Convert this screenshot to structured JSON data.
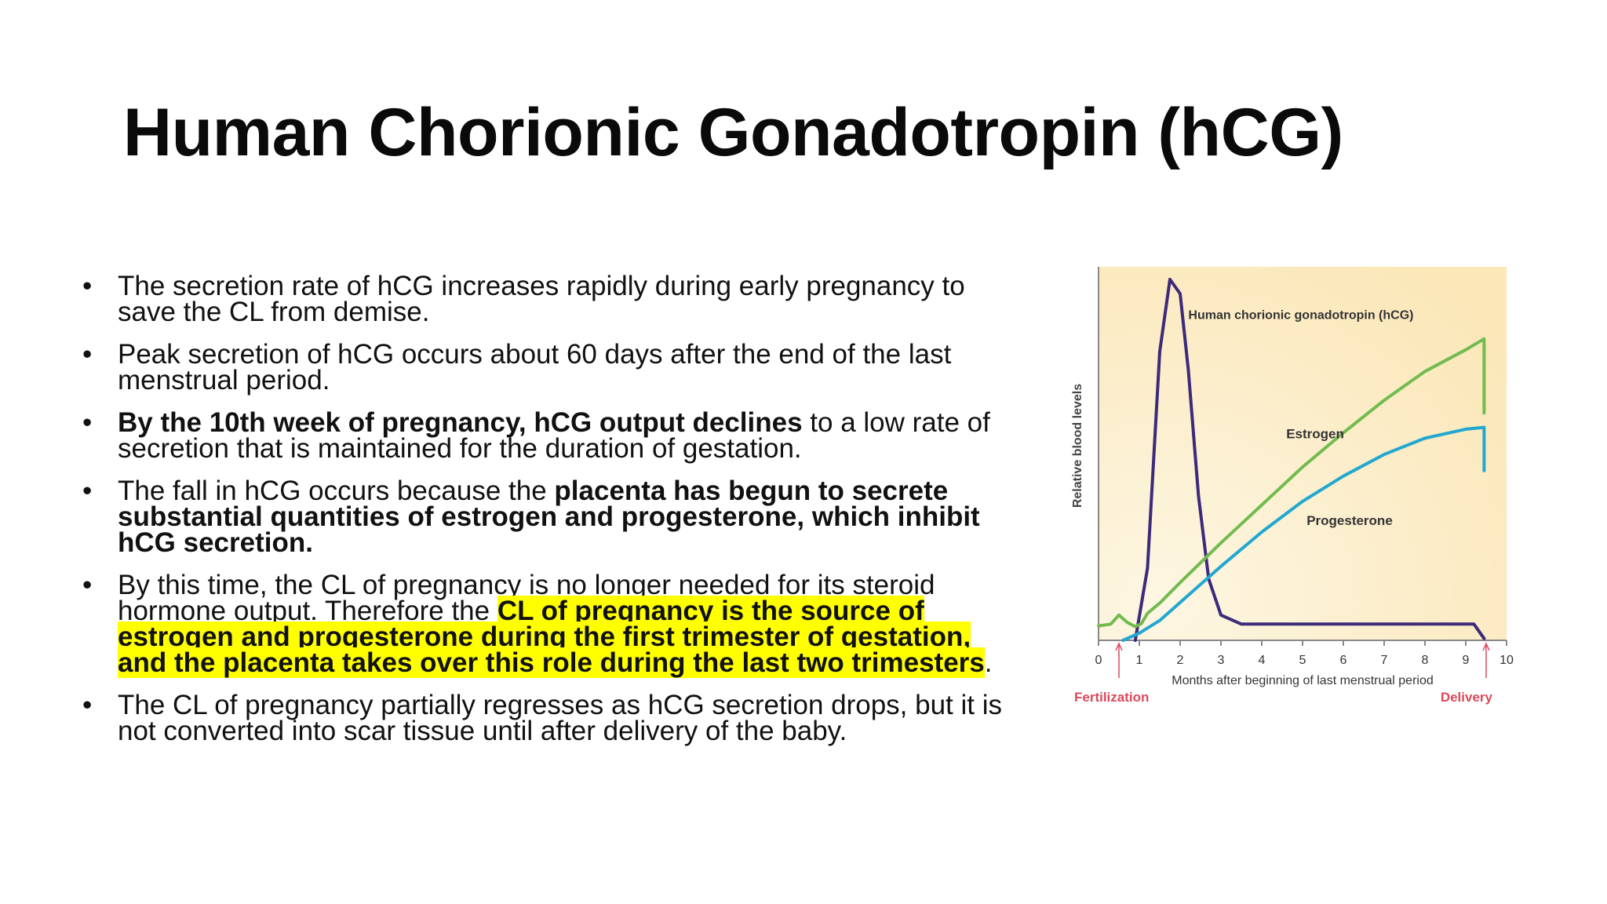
{
  "slide": {
    "title": "Human Chorionic Gonadotropin (hCG)",
    "bullet_symbol": "•",
    "bullets": [
      {
        "segments": [
          {
            "text": "The secretion rate of hCG increases rapidly during early pregnancy to save the CL from demise.",
            "style": "normal"
          }
        ]
      },
      {
        "segments": [
          {
            "text": "Peak secretion of hCG occurs about 60 days after the end of the last menstrual period.",
            "style": "normal"
          }
        ]
      },
      {
        "segments": [
          {
            "text": "By the 10th week of pregnancy, hCG output declines",
            "style": "bold"
          },
          {
            "text": " to a low rate of secretion that is maintained for the duration of gestation.",
            "style": "normal"
          }
        ]
      },
      {
        "segments": [
          {
            "text": "The fall in hCG occurs because the ",
            "style": "normal"
          },
          {
            "text": "placenta has begun to secrete substantial quantities of estrogen and progesterone, which inhibit hCG secretion.",
            "style": "bold"
          }
        ]
      },
      {
        "segments": [
          {
            "text": "By this time, the CL of pregnancy is no longer needed for its steroid hormone output. Therefore the ",
            "style": "normal"
          },
          {
            "text": "CL of pregnancy is the source of estrogen and progesterone during the first trimester of gestation, and the placenta takes over this role during the last two trimesters",
            "style": "highlight"
          },
          {
            "text": ".",
            "style": "normal"
          }
        ]
      },
      {
        "segments": [
          {
            "text": "The CL of pregnancy partially regresses as hCG secretion drops, but it is not converted into scar tissue until after delivery of the baby.",
            "style": "normal"
          }
        ]
      }
    ]
  },
  "colors": {
    "highlight": "#ffff00",
    "chart_background": "#fbe7b8",
    "hcg": "#3c2a7a",
    "estrogen": "#72bb4f",
    "progesterone": "#21a7d0",
    "marker": "#d94a5c",
    "axis": "#888888"
  },
  "chart_data": {
    "type": "line",
    "ylabel": "Relative blood levels",
    "xlabel": "Months after beginning of last menstrual period",
    "xlim": [
      0,
      10
    ],
    "ylim": [
      0,
      100
    ],
    "x_ticks": [
      "0",
      "1",
      "2",
      "3",
      "4",
      "5",
      "6",
      "7",
      "8",
      "9",
      "10"
    ],
    "grid": false,
    "series": [
      {
        "name": "Human chorionic gonadotropin (hCG)",
        "color": "#3c2a7a",
        "points": [
          [
            0.9,
            0
          ],
          [
            1.2,
            20
          ],
          [
            1.5,
            80
          ],
          [
            1.75,
            100
          ],
          [
            2.0,
            96
          ],
          [
            2.2,
            75
          ],
          [
            2.45,
            40
          ],
          [
            2.7,
            17
          ],
          [
            3.0,
            7
          ],
          [
            3.5,
            4.5
          ],
          [
            5,
            4.5
          ],
          [
            7,
            4.5
          ],
          [
            9.2,
            4.5
          ],
          [
            9.45,
            0.5
          ]
        ]
      },
      {
        "name": "Estrogen",
        "color": "#72bb4f",
        "points": [
          [
            0,
            4
          ],
          [
            0.3,
            4.5
          ],
          [
            0.5,
            7
          ],
          [
            0.7,
            5
          ],
          [
            0.9,
            3.8
          ],
          [
            1.05,
            4.6
          ],
          [
            1.2,
            7.5
          ],
          [
            1.5,
            10.3
          ],
          [
            2,
            16
          ],
          [
            3,
            27
          ],
          [
            4,
            37.5
          ],
          [
            5,
            48
          ],
          [
            6,
            57.5
          ],
          [
            7,
            66.5
          ],
          [
            8,
            74.5
          ],
          [
            9,
            80.5
          ],
          [
            9.45,
            83.5
          ],
          [
            9.45,
            63
          ]
        ]
      },
      {
        "name": "Progesterone",
        "color": "#21a7d0",
        "points": [
          [
            0.6,
            0
          ],
          [
            1,
            2
          ],
          [
            1.5,
            5.5
          ],
          [
            2,
            10.5
          ],
          [
            3,
            20.5
          ],
          [
            4,
            30
          ],
          [
            5,
            38.5
          ],
          [
            6,
            45.5
          ],
          [
            7,
            51.5
          ],
          [
            8,
            56
          ],
          [
            9,
            58.5
          ],
          [
            9.45,
            59
          ],
          [
            9.45,
            47
          ]
        ]
      }
    ],
    "annotations": [
      {
        "text": "Fertilization",
        "x": 0.5
      },
      {
        "text": "Delivery",
        "x": 9.5
      }
    ]
  }
}
